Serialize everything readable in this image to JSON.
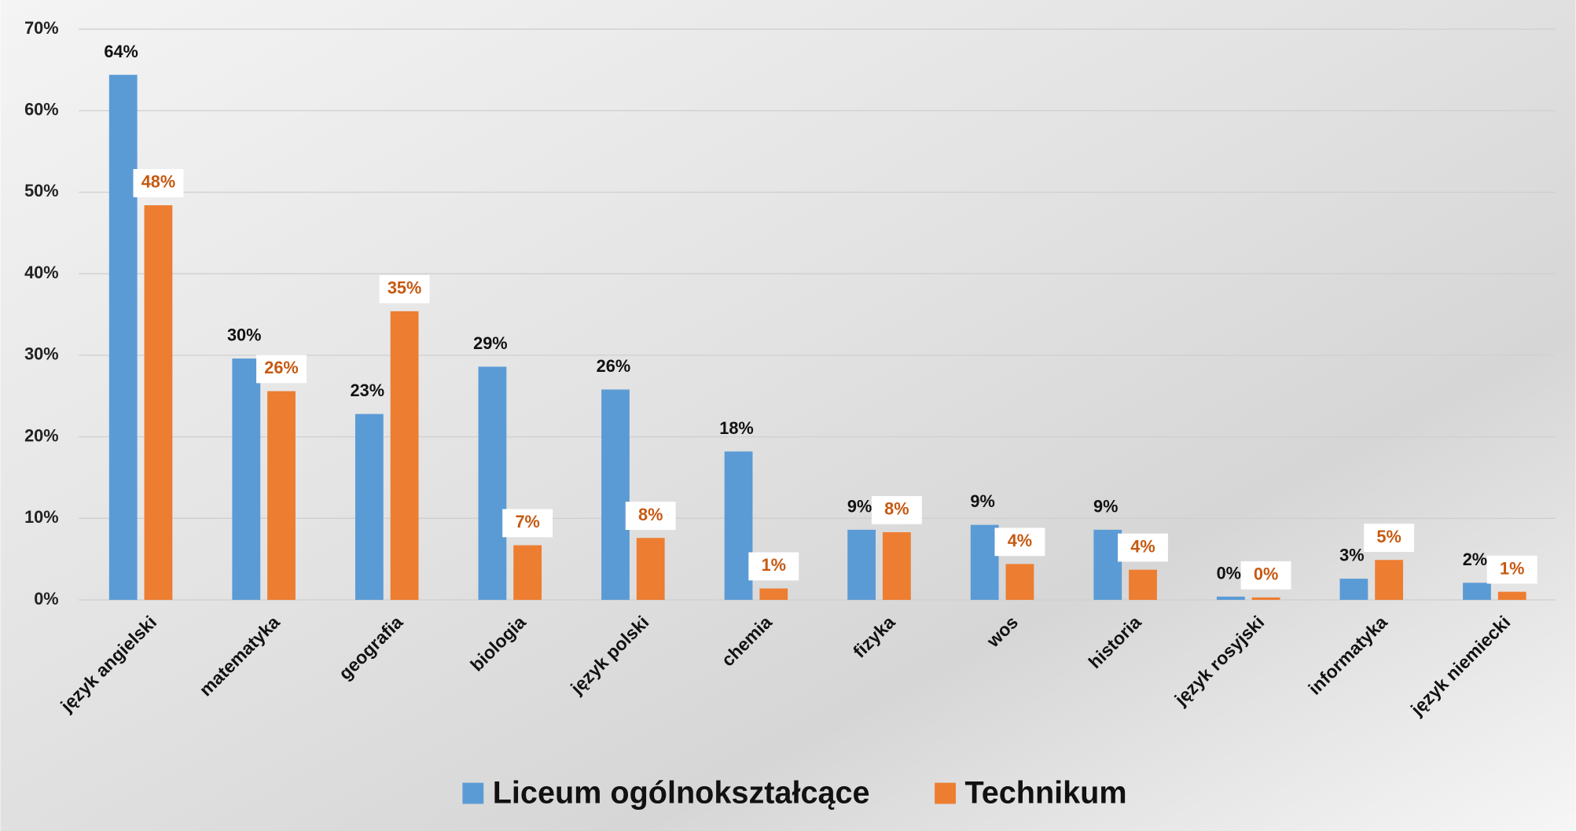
{
  "chart_data": {
    "type": "bar",
    "categories": [
      "język angielski",
      "matematyka",
      "geografia",
      "biologia",
      "język polski",
      "chemia",
      "fizyka",
      "wos",
      "historia",
      "język rosyjski",
      "informatyka",
      "język niemiecki"
    ],
    "series": [
      {
        "name": "Liceum ogólnokształcące",
        "color": "#5b9bd5",
        "values": [
          64.4,
          29.6,
          22.8,
          28.6,
          25.8,
          18.2,
          8.6,
          9.2,
          8.6,
          0.4,
          2.6,
          2.1
        ],
        "value_labels": [
          "64%",
          "30%",
          "23%",
          "29%",
          "26%",
          "18%",
          "9%",
          "9%",
          "9%",
          "0%",
          "3%",
          "2%"
        ]
      },
      {
        "name": "Technikum",
        "color": "#ed7d31",
        "values": [
          48.4,
          25.6,
          35.4,
          6.7,
          7.6,
          1.4,
          8.3,
          4.4,
          3.7,
          0.3,
          4.9,
          1.0
        ],
        "value_labels": [
          "48%",
          "26%",
          "35%",
          "7%",
          "8%",
          "1%",
          "8%",
          "4%",
          "4%",
          "0%",
          "5%",
          "1%"
        ]
      }
    ],
    "ylim": [
      0,
      70
    ],
    "yticks": [
      {
        "value": 0,
        "label": "0%"
      },
      {
        "value": 10,
        "label": "10%"
      },
      {
        "value": 20,
        "label": "20%"
      },
      {
        "value": 30,
        "label": "30%"
      },
      {
        "value": 40,
        "label": "40%"
      },
      {
        "value": 50,
        "label": "50%"
      },
      {
        "value": 60,
        "label": "60%"
      },
      {
        "value": 70,
        "label": "70%"
      }
    ],
    "grid": true,
    "legend": "bottom"
  }
}
